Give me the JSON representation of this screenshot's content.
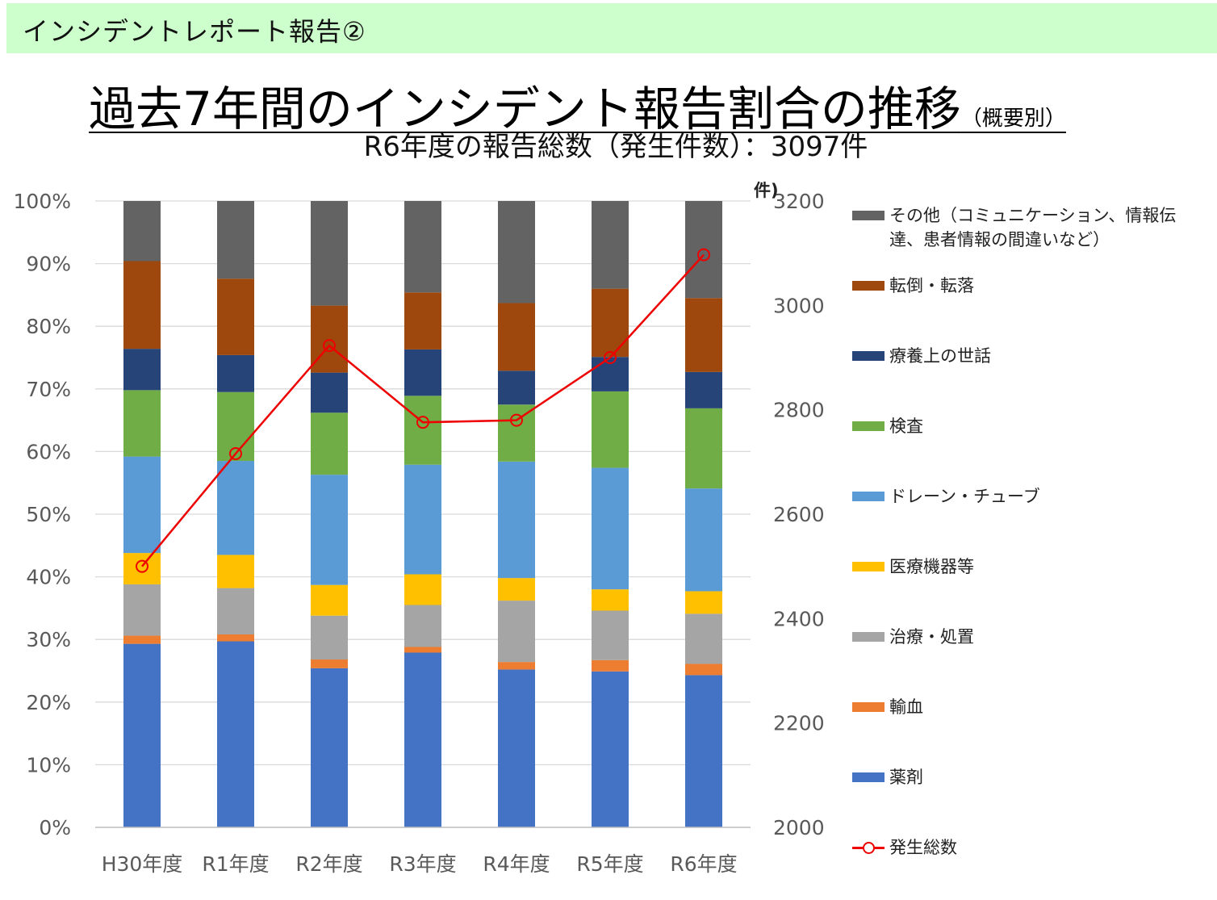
{
  "banner": {
    "text": "インシデントレポート報告②"
  },
  "title": {
    "main": "過去7年間のインシデント報告割合の推移",
    "suffix": "（概要別）"
  },
  "subtitle": "R6年度の報告総数（発生件数）：3097件",
  "chart_data": {
    "type": "bar",
    "stacked": true,
    "categories": [
      "H30年度",
      "R1年度",
      "R2年度",
      "R3年度",
      "R4年度",
      "R5年度",
      "R6年度"
    ],
    "left_axis": {
      "ylim": [
        0,
        100
      ],
      "ticks": [
        "0%",
        "10%",
        "20%",
        "30%",
        "40%",
        "50%",
        "60%",
        "70%",
        "80%",
        "90%",
        "100%"
      ]
    },
    "right_axis": {
      "label": "件)",
      "ylim": [
        2000,
        3200
      ],
      "ticks": [
        "2000",
        "2200",
        "2400",
        "2600",
        "2800",
        "3000",
        "3200"
      ]
    },
    "grid": true,
    "legend_position": "right",
    "series": [
      {
        "name": "薬剤",
        "color": "#4472c4",
        "values": [
          29.3,
          29.7,
          25.4,
          27.9,
          25.2,
          24.9,
          24.3
        ]
      },
      {
        "name": "輸血",
        "color": "#ed7d31",
        "values": [
          1.3,
          1.1,
          1.4,
          0.9,
          1.2,
          1.8,
          1.8
        ]
      },
      {
        "name": "治療・処置",
        "color": "#a5a5a5",
        "values": [
          8.2,
          7.4,
          7.0,
          6.7,
          9.8,
          7.9,
          8.0
        ]
      },
      {
        "name": "医療機器等",
        "color": "#ffc000",
        "values": [
          5.0,
          5.3,
          4.9,
          4.9,
          3.6,
          3.4,
          3.6
        ]
      },
      {
        "name": "ドレーン・チューブ",
        "color": "#5b9bd5",
        "values": [
          15.4,
          15.0,
          17.6,
          17.5,
          18.6,
          19.4,
          16.4
        ]
      },
      {
        "name": "検査",
        "color": "#70ad47",
        "values": [
          10.6,
          11.0,
          9.9,
          11.0,
          9.1,
          12.2,
          12.8
        ]
      },
      {
        "name": "療養上の世話",
        "color": "#264478",
        "values": [
          6.6,
          5.9,
          6.4,
          7.4,
          5.4,
          5.5,
          5.8
        ]
      },
      {
        "name": "転倒・転落",
        "color": "#9e480e",
        "values": [
          14.0,
          12.2,
          10.7,
          9.1,
          10.8,
          10.9,
          11.8
        ]
      },
      {
        "name": "その他（コミュニケーション、情報伝達、患者情報の間違いなど）",
        "color": "#636363",
        "values": [
          9.6,
          12.4,
          16.7,
          14.6,
          16.3,
          14.0,
          15.5
        ]
      }
    ],
    "line_series": {
      "name": "発生総数",
      "color": "#ee0000",
      "axis": "right",
      "values": [
        2500,
        2716,
        2923,
        2776,
        2780,
        2900,
        3097
      ]
    }
  }
}
